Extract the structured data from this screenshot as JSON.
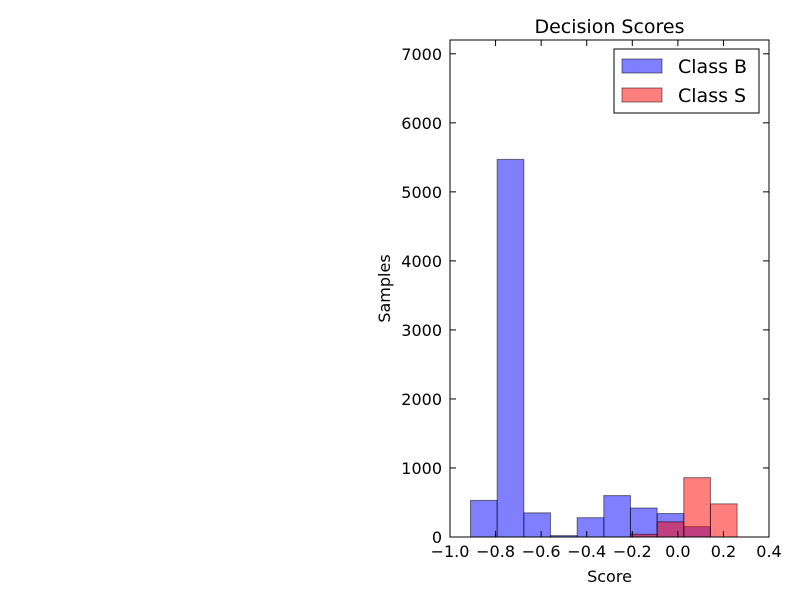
{
  "chart_data": {
    "type": "histogram",
    "title": "Decision Scores",
    "xlabel": "Score",
    "ylabel": "Samples",
    "xlim": [
      -1.0,
      0.4
    ],
    "ylim": [
      0,
      7200
    ],
    "x_ticks": [
      -1.0,
      -0.8,
      -0.6,
      -0.4,
      -0.2,
      0.0,
      0.2,
      0.4
    ],
    "x_tick_labels": [
      "−1.0",
      "−0.8",
      "−0.6",
      "−0.4",
      "−0.2",
      "0.0",
      "0.2",
      "0.4"
    ],
    "y_ticks": [
      0,
      1000,
      2000,
      3000,
      4000,
      5000,
      6000,
      7000
    ],
    "y_tick_labels": [
      "0",
      "1000",
      "2000",
      "3000",
      "4000",
      "5000",
      "6000",
      "7000"
    ],
    "grid": false,
    "legend_position": "top-right",
    "series": [
      {
        "name": "Class B",
        "color": "#0000ff",
        "alpha": 0.5,
        "bin_edges": [
          -0.91,
          -0.793,
          -0.676,
          -0.559,
          -0.442,
          -0.325,
          -0.208,
          -0.091,
          0.026,
          0.143,
          0.26
        ],
        "counts": [
          530,
          5470,
          350,
          20,
          280,
          600,
          420,
          340,
          150,
          0
        ]
      },
      {
        "name": "Class S",
        "color": "#ff0000",
        "alpha": 0.5,
        "bin_edges": [
          -0.91,
          -0.793,
          -0.676,
          -0.559,
          -0.442,
          -0.325,
          -0.208,
          -0.091,
          0.026,
          0.143,
          0.26
        ],
        "counts": [
          0,
          0,
          0,
          0,
          0,
          0,
          40,
          220,
          860,
          480
        ]
      }
    ]
  }
}
